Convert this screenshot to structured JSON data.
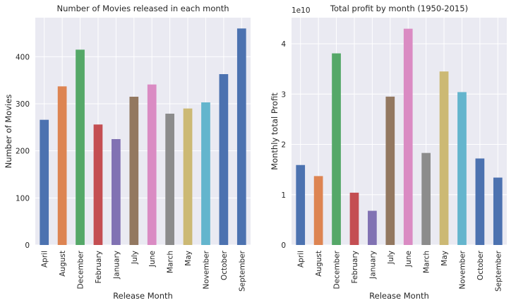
{
  "chart_data": [
    {
      "type": "bar",
      "title": "Number of Movies released in each month",
      "xlabel": "Release Month",
      "ylabel": "Number of Movies",
      "categories": [
        "April",
        "August",
        "December",
        "February",
        "January",
        "July",
        "June",
        "March",
        "May",
        "November",
        "October",
        "September"
      ],
      "values": [
        266,
        337,
        415,
        256,
        225,
        315,
        341,
        279,
        290,
        303,
        363,
        460
      ],
      "ylim": [
        0,
        483
      ],
      "yticks": [
        0,
        100,
        200,
        300,
        400
      ],
      "ytick_labels": [
        "0",
        "100",
        "200",
        "300",
        "400"
      ],
      "grid": true
    },
    {
      "type": "bar",
      "title": "Total profit by month (1950-2015)",
      "xlabel": "Release Month",
      "ylabel": "Monthly total Profit",
      "offset_label": "1e10",
      "categories": [
        "April",
        "August",
        "December",
        "February",
        "January",
        "July",
        "June",
        "March",
        "May",
        "November",
        "October",
        "September"
      ],
      "values": [
        1.59,
        1.37,
        3.81,
        1.04,
        0.68,
        2.95,
        4.3,
        1.83,
        3.45,
        3.04,
        1.72,
        1.34
      ],
      "ylim": [
        0,
        4.52
      ],
      "yticks": [
        0,
        1,
        2,
        3,
        4
      ],
      "ytick_labels": [
        "0",
        "1",
        "2",
        "3",
        "4"
      ],
      "grid": true
    }
  ],
  "colors": [
    "#4c72b0",
    "#dd8452",
    "#55a868",
    "#c44e52",
    "#8172b3",
    "#937860",
    "#da8bc3",
    "#8c8c8c",
    "#ccb974",
    "#64b5cd",
    "#4c72b0",
    "#4c72b0"
  ]
}
